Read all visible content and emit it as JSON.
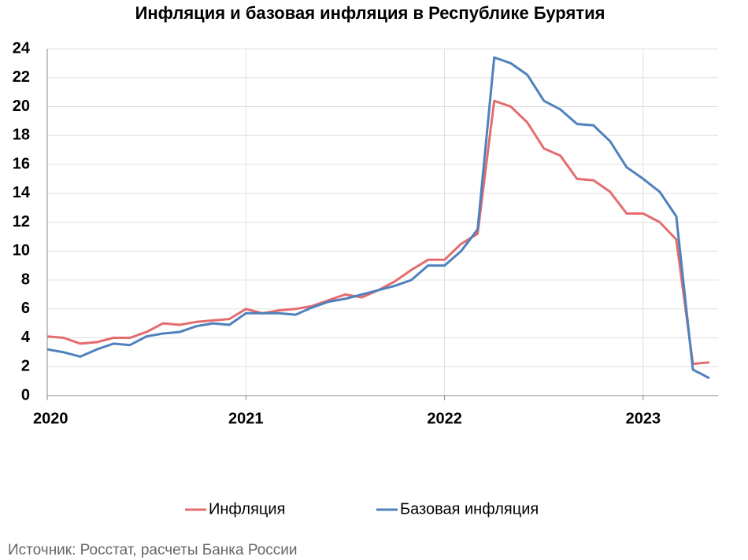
{
  "chart_data": {
    "type": "line",
    "title": "Инфляция и базовая инфляция в Республике Бурятия",
    "categories": [
      "2020",
      null,
      null,
      null,
      null,
      null,
      null,
      null,
      null,
      null,
      null,
      null,
      "2021",
      null,
      null,
      null,
      null,
      null,
      null,
      null,
      null,
      null,
      null,
      null,
      "2022",
      null,
      null,
      null,
      null,
      null,
      null,
      null,
      null,
      null,
      null,
      null,
      "2023",
      null,
      null,
      null,
      null
    ],
    "series": [
      {
        "name": "Инфляция",
        "color": "#e46c6e",
        "values": [
          4.1,
          4.0,
          3.6,
          3.7,
          4.0,
          4.0,
          4.4,
          5.0,
          4.9,
          5.1,
          5.2,
          5.3,
          6.0,
          5.7,
          5.9,
          6.0,
          6.2,
          6.6,
          7.0,
          6.8,
          7.3,
          7.9,
          8.7,
          9.4,
          9.4,
          10.5,
          11.2,
          20.4,
          20.0,
          18.9,
          17.1,
          16.6,
          15.0,
          14.9,
          14.1,
          12.6,
          12.6,
          12.0,
          10.8,
          2.2,
          2.3
        ]
      },
      {
        "name": "Базовая инфляция",
        "color": "#4f81bd",
        "values": [
          3.2,
          3.0,
          2.7,
          3.2,
          3.6,
          3.5,
          4.1,
          4.3,
          4.4,
          4.8,
          5.0,
          4.9,
          5.7,
          5.7,
          5.7,
          5.6,
          6.1,
          6.5,
          6.7,
          7.0,
          7.3,
          7.6,
          8.0,
          9.0,
          9.0,
          10.0,
          11.5,
          23.4,
          23.0,
          22.2,
          20.4,
          19.8,
          18.8,
          18.7,
          17.6,
          15.8,
          15.0,
          14.1,
          12.4,
          1.8,
          1.2
        ]
      }
    ],
    "ylim": [
      0,
      24
    ],
    "yticks": [
      0,
      2,
      4,
      6,
      8,
      10,
      12,
      14,
      16,
      18,
      20,
      22,
      24
    ],
    "grid": true,
    "legend": "bottom",
    "source": "Источник: Росстат, расчеты Банка России"
  }
}
